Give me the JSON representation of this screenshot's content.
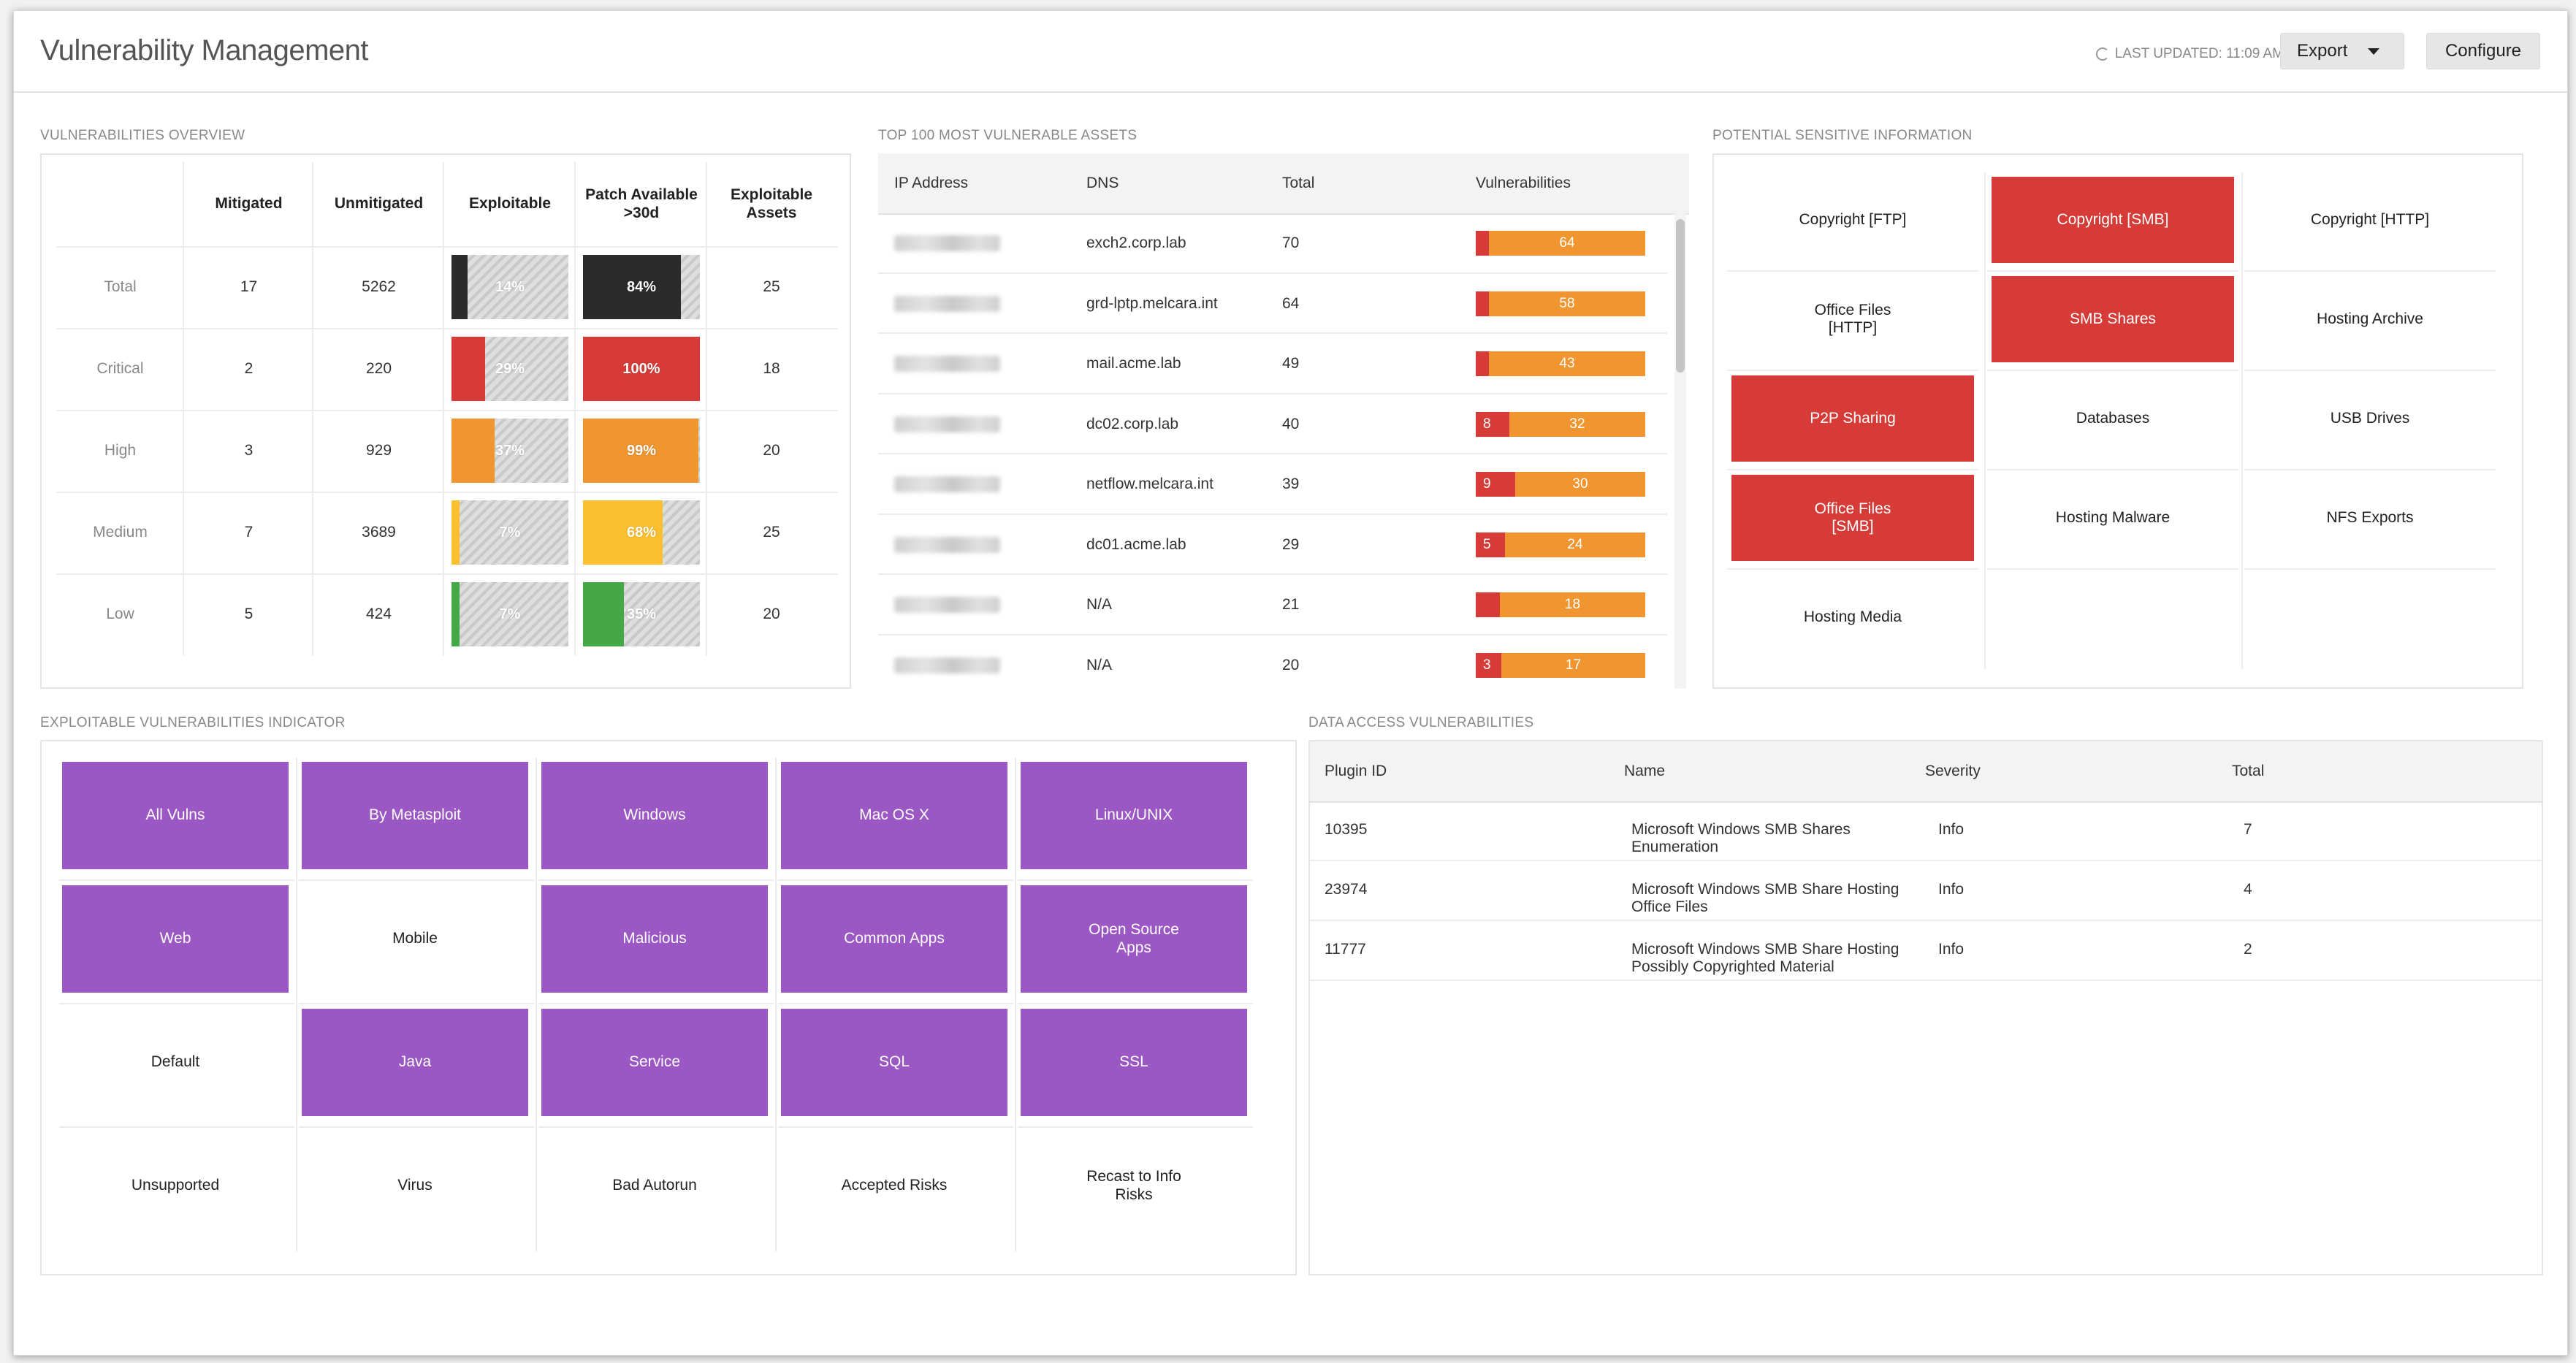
{
  "header": {
    "title": "Vulnerability Management",
    "last_updated": "LAST UPDATED: 11:09 AM",
    "export_label": "Export",
    "configure_label": "Configure"
  },
  "overview": {
    "title": "VULNERABILITIES OVERVIEW",
    "columns": [
      "Mitigated",
      "Unmitigated",
      "Exploitable",
      "Patch Available >30d",
      "Exploitable Assets"
    ],
    "rows": [
      {
        "label": "Total",
        "mitigated": "17",
        "unmitigated": "5262",
        "exploitable": "14%",
        "exploitable_pct": 14,
        "patch": "84%",
        "patch_pct": 84,
        "assets": "25",
        "color": "#2b2b2b"
      },
      {
        "label": "Critical",
        "mitigated": "2",
        "unmitigated": "220",
        "exploitable": "29%",
        "exploitable_pct": 29,
        "patch": "100%",
        "patch_pct": 100,
        "assets": "18",
        "color": "#d63b37"
      },
      {
        "label": "High",
        "mitigated": "3",
        "unmitigated": "929",
        "exploitable": "37%",
        "exploitable_pct": 37,
        "patch": "99%",
        "patch_pct": 99,
        "assets": "20",
        "color": "#f0952f"
      },
      {
        "label": "Medium",
        "mitigated": "7",
        "unmitigated": "3689",
        "exploitable": "7%",
        "exploitable_pct": 7,
        "patch": "68%",
        "patch_pct": 68,
        "assets": "25",
        "color": "#fbc02d"
      },
      {
        "label": "Low",
        "mitigated": "5",
        "unmitigated": "424",
        "exploitable": "7%",
        "exploitable_pct": 7,
        "patch": "35%",
        "patch_pct": 35,
        "assets": "20",
        "color": "#43a845"
      }
    ]
  },
  "assets": {
    "title": "TOP 100 MOST VULNERABLE ASSETS",
    "columns": [
      "IP Address",
      "DNS",
      "Total",
      "Vulnerabilities"
    ],
    "rows": [
      {
        "dns": "exch2.corp.lab",
        "total": "70",
        "critical": "",
        "high": "64",
        "critical_count": 2
      },
      {
        "dns": "grd-lptp.melcara.int",
        "total": "64",
        "critical": "",
        "high": "58",
        "critical_count": 2
      },
      {
        "dns": "mail.acme.lab",
        "total": "49",
        "critical": "",
        "high": "43",
        "critical_count": 2
      },
      {
        "dns": "dc02.corp.lab",
        "total": "40",
        "critical": "8",
        "high": "32",
        "critical_count": 8
      },
      {
        "dns": "netflow.melcara.int",
        "total": "39",
        "critical": "9",
        "high": "30",
        "critical_count": 9
      },
      {
        "dns": "dc01.acme.lab",
        "total": "29",
        "critical": "5",
        "high": "24",
        "critical_count": 5
      },
      {
        "dns": "N/A",
        "total": "21",
        "critical": "",
        "high": "18",
        "critical_count": 3
      },
      {
        "dns": "N/A",
        "total": "20",
        "critical": "3",
        "high": "17",
        "critical_count": 3
      }
    ]
  },
  "sensitive": {
    "title": "POTENTIAL SENSITIVE INFORMATION",
    "tiles": [
      {
        "label": "Copyright [FTP]",
        "state": "plain"
      },
      {
        "label": "Copyright [SMB]",
        "state": "red"
      },
      {
        "label": "Copyright [HTTP]",
        "state": "plain"
      },
      {
        "label": "Office Files\n[HTTP]",
        "state": "plain"
      },
      {
        "label": "SMB Shares",
        "state": "red"
      },
      {
        "label": "Hosting Archive",
        "state": "plain"
      },
      {
        "label": "P2P Sharing",
        "state": "red"
      },
      {
        "label": "Databases",
        "state": "plain"
      },
      {
        "label": "USB Drives",
        "state": "plain"
      },
      {
        "label": "Office Files\n[SMB]",
        "state": "red"
      },
      {
        "label": "Hosting Malware",
        "state": "plain"
      },
      {
        "label": "NFS Exports",
        "state": "plain"
      },
      {
        "label": "Hosting Media",
        "state": "plain"
      },
      {
        "label": "",
        "state": "plain"
      },
      {
        "label": "",
        "state": "plain"
      }
    ]
  },
  "exploitable": {
    "title": "EXPLOITABLE VULNERABILITIES INDICATOR",
    "tiles": [
      {
        "label": "All Vulns",
        "state": "purple"
      },
      {
        "label": "By Metasploit",
        "state": "purple"
      },
      {
        "label": "Windows",
        "state": "purple"
      },
      {
        "label": "Mac OS X",
        "state": "purple"
      },
      {
        "label": "Linux/UNIX",
        "state": "purple"
      },
      {
        "label": "Web",
        "state": "purple"
      },
      {
        "label": "Mobile",
        "state": "plain"
      },
      {
        "label": "Malicious",
        "state": "purple"
      },
      {
        "label": "Common Apps",
        "state": "purple"
      },
      {
        "label": "Open Source\nApps",
        "state": "purple"
      },
      {
        "label": "Default",
        "state": "plain"
      },
      {
        "label": "Java",
        "state": "purple"
      },
      {
        "label": "Service",
        "state": "purple"
      },
      {
        "label": "SQL",
        "state": "purple"
      },
      {
        "label": "SSL",
        "state": "purple"
      },
      {
        "label": "Unsupported",
        "state": "plain"
      },
      {
        "label": "Virus",
        "state": "plain"
      },
      {
        "label": "Bad Autorun",
        "state": "plain"
      },
      {
        "label": "Accepted Risks",
        "state": "plain"
      },
      {
        "label": "Recast to Info\nRisks",
        "state": "plain"
      }
    ]
  },
  "data_access": {
    "title": "DATA ACCESS VULNERABILITIES",
    "columns": [
      "Plugin ID",
      "Name",
      "Severity",
      "Total"
    ],
    "rows": [
      {
        "plugin_id": "10395",
        "name": "Microsoft Windows SMB Shares\nEnumeration",
        "severity": "Info",
        "total": "7"
      },
      {
        "plugin_id": "23974",
        "name": "Microsoft Windows SMB Share Hosting\nOffice Files",
        "severity": "Info",
        "total": "4"
      },
      {
        "plugin_id": "11777",
        "name": "Microsoft Windows SMB Share Hosting\nPossibly Copyrighted Material",
        "severity": "Info",
        "total": "2"
      }
    ]
  }
}
